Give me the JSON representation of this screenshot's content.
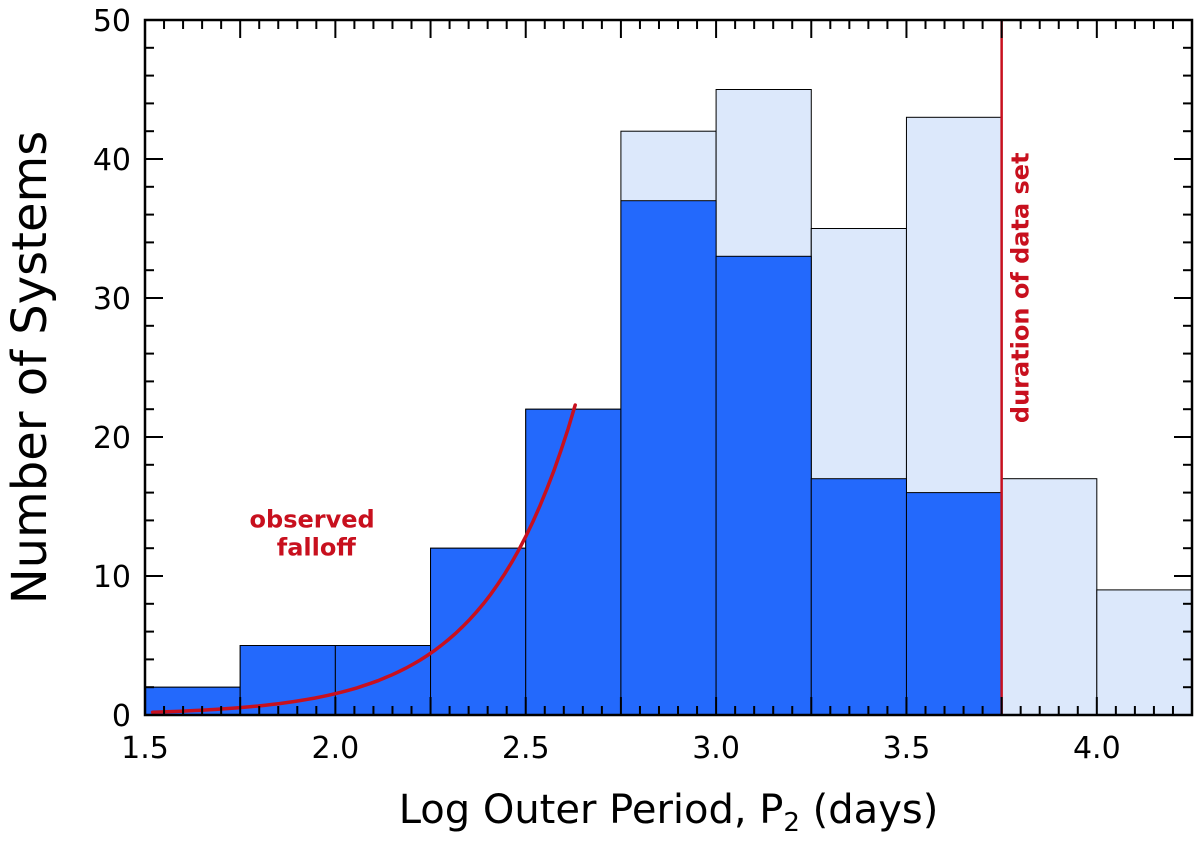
{
  "chart_data": {
    "type": "bar",
    "xlabel": "Log Outer Period, P",
    "xlabel_subscript": "2",
    "xlabel_suffix": " (days)",
    "ylabel": "Number of Systems",
    "xlim": [
      1.5,
      4.25
    ],
    "ylim": [
      0,
      50
    ],
    "x_ticks": [
      1.5,
      2.0,
      2.5,
      3.0,
      3.5,
      4.0
    ],
    "x_tick_labels": [
      "1.5",
      "2.0",
      "2.5",
      "3.0",
      "3.5",
      "4.0"
    ],
    "y_ticks": [
      0,
      10,
      20,
      30,
      40,
      50
    ],
    "y_tick_labels": [
      "0",
      "10",
      "20",
      "30",
      "40",
      "50"
    ],
    "bin_edges": [
      1.5,
      1.75,
      2.0,
      2.25,
      2.5,
      2.75,
      3.0,
      3.25,
      3.5,
      3.75,
      4.0,
      4.25
    ],
    "series": [
      {
        "values": [
          2,
          5,
          5,
          12,
          22,
          42,
          45,
          35,
          43,
          17,
          9
        ],
        "color": "#dce8fb"
      },
      {
        "values": [
          2,
          5,
          5,
          12,
          22,
          37,
          33,
          17,
          16,
          0,
          0
        ],
        "color": "#2369fc"
      }
    ],
    "vline": {
      "x": 3.75,
      "label": "duration of data set",
      "color": "#c8101e"
    },
    "falloff_curve": {
      "x_range": [
        1.52,
        2.63
      ],
      "y_range": [
        0.2,
        22.3
      ],
      "color": "#c8101e"
    },
    "annotations": [
      {
        "text_lines": [
          "observed",
          "falloff"
        ],
        "x": 1.95,
        "y": 13.5,
        "color": "#c8101e"
      }
    ],
    "grid": false
  }
}
